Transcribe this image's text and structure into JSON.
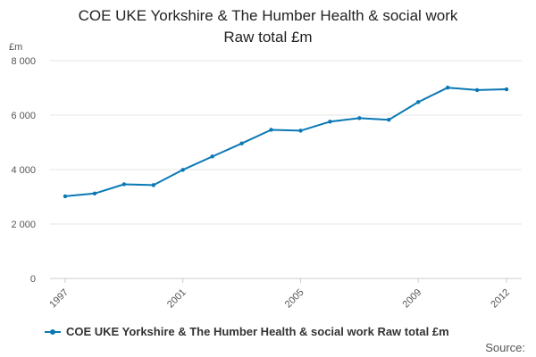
{
  "chart_data": {
    "type": "line",
    "title_line1": "COE UKE Yorkshire & The Humber Health & social work",
    "title_line2": "Raw total £m",
    "ylabel": "£m",
    "xlabel": "",
    "ylim": [
      0,
      8000
    ],
    "xlim": [
      1997,
      2012
    ],
    "y_ticks": [
      0,
      2000,
      4000,
      6000,
      8000
    ],
    "y_tick_labels": [
      "0",
      "2 000",
      "4 000",
      "6 000",
      "8 000"
    ],
    "x_ticks": [
      1997,
      2001,
      2005,
      2009,
      2012
    ],
    "x_tick_labels": [
      "1997",
      "2001",
      "2005",
      "2009",
      "2012"
    ],
    "grid": true,
    "legend_position": "bottom-left",
    "series": [
      {
        "name": "COE UKE Yorkshire & The Humber Health & social work Raw total £m",
        "color": "#0a78b4",
        "x": [
          1997,
          1998,
          1999,
          2000,
          2001,
          2002,
          2003,
          2004,
          2005,
          2006,
          2007,
          2008,
          2009,
          2010,
          2011,
          2012
        ],
        "values": [
          3020,
          3120,
          3460,
          3430,
          3990,
          4480,
          4960,
          5460,
          5430,
          5760,
          5890,
          5830,
          6480,
          7010,
          6920,
          6950
        ]
      }
    ]
  },
  "source_label": "Source:"
}
